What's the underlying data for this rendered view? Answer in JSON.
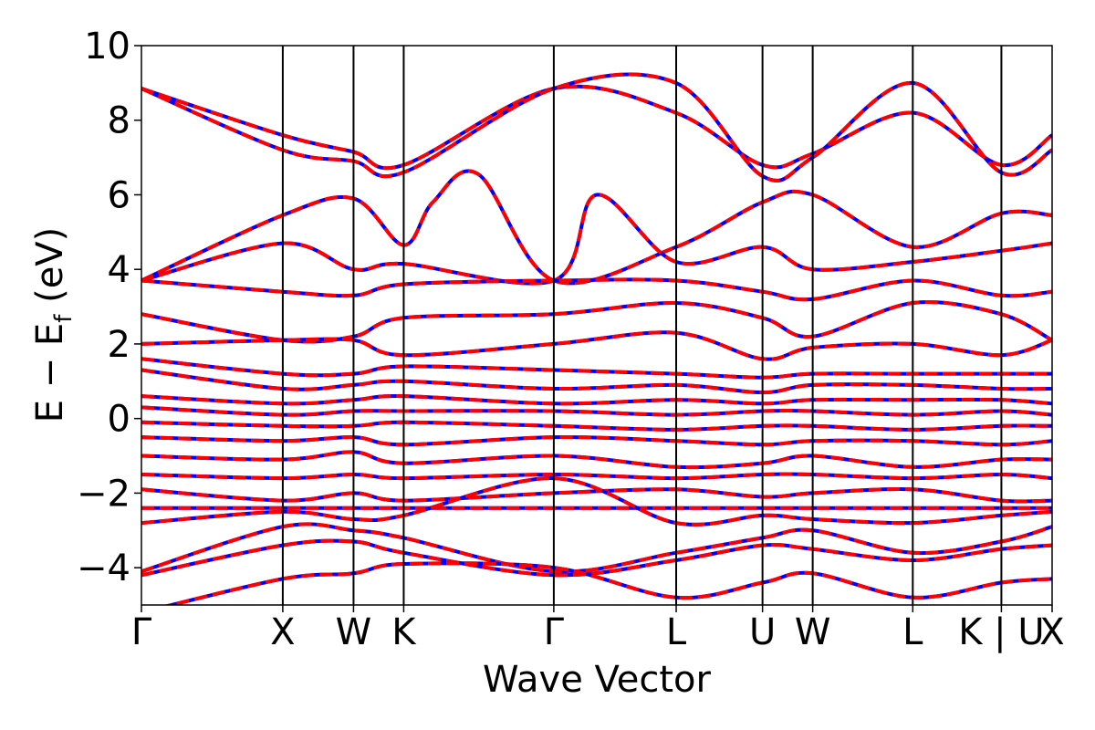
{
  "chart_data": {
    "type": "line",
    "title": "",
    "xlabel": "Wave Vector",
    "ylabel": {
      "main": "E − E",
      "sub": "f",
      "unit": " (eV)"
    },
    "ylim": [
      -5,
      10
    ],
    "yticks": [
      {
        "value": 10,
        "label": "10"
      },
      {
        "value": 8,
        "label": "8"
      },
      {
        "value": 6,
        "label": "6"
      },
      {
        "value": 4,
        "label": "4"
      },
      {
        "value": 2,
        "label": "2"
      },
      {
        "value": 0,
        "label": "0"
      },
      {
        "value": -2,
        "label": "−2"
      },
      {
        "value": -4,
        "label": "−4"
      }
    ],
    "xlim": [
      0,
      1
    ],
    "kpoints": [
      {
        "label": "Γ",
        "x": 0.0
      },
      {
        "label": "X",
        "x": 0.1552
      },
      {
        "label": "W",
        "x": 0.2329
      },
      {
        "label": "K",
        "x": 0.288
      },
      {
        "label": "Γ",
        "x": 0.4528
      },
      {
        "label": "L",
        "x": 0.5872
      },
      {
        "label": "U",
        "x": 0.682
      },
      {
        "label": "W",
        "x": 0.7371
      },
      {
        "label": "L",
        "x": 0.847
      },
      {
        "label": "K | U",
        "x": 0.9443
      },
      {
        "label": "X",
        "x": 1.0
      }
    ],
    "grid": false,
    "legend": "none",
    "series_style": [
      {
        "color": "#0000ff",
        "style": "solid"
      },
      {
        "color": "#ff0000",
        "style": "dashed"
      }
    ],
    "bands": [
      {
        "x": [
          0,
          0.155,
          0.233,
          0.288,
          0.453,
          0.587,
          0.682,
          0.737,
          0.847,
          0.944,
          1.0
        ],
        "y": [
          8.85,
          7.6,
          7.15,
          6.8,
          8.85,
          8.2,
          6.8,
          7.1,
          8.2,
          6.8,
          7.6
        ]
      },
      {
        "x": [
          0,
          0.155,
          0.233,
          0.288,
          0.453,
          0.587,
          0.682,
          0.737,
          0.847,
          0.944,
          1.0
        ],
        "y": [
          8.85,
          7.2,
          6.9,
          6.6,
          8.85,
          9.0,
          6.5,
          7.0,
          9.0,
          6.6,
          7.2
        ]
      },
      {
        "x": [
          0,
          0.155,
          0.233,
          0.288,
          0.32,
          0.37,
          0.453,
          0.587,
          0.682,
          0.737,
          0.847,
          0.944,
          1.0
        ],
        "y": [
          3.7,
          5.45,
          5.9,
          4.65,
          5.8,
          6.55,
          3.7,
          4.6,
          5.8,
          6.0,
          4.6,
          5.5,
          5.45
        ]
      },
      {
        "x": [
          0,
          0.155,
          0.233,
          0.288,
          0.453,
          0.5,
          0.587,
          0.682,
          0.737,
          0.847,
          0.944,
          1.0
        ],
        "y": [
          3.7,
          4.7,
          4.0,
          4.15,
          3.7,
          6.0,
          4.2,
          4.6,
          4.0,
          4.2,
          4.5,
          4.7
        ]
      },
      {
        "x": [
          0,
          0.155,
          0.233,
          0.288,
          0.453,
          0.587,
          0.682,
          0.737,
          0.847,
          0.944,
          1.0
        ],
        "y": [
          3.7,
          3.4,
          3.3,
          3.6,
          3.7,
          3.7,
          3.4,
          3.2,
          3.7,
          3.3,
          3.4
        ]
      },
      {
        "x": [
          0,
          0.155,
          0.233,
          0.288,
          0.453,
          0.587,
          0.682,
          0.737,
          0.847,
          0.944,
          1.0
        ],
        "y": [
          2.8,
          2.1,
          2.2,
          2.7,
          2.8,
          3.1,
          2.7,
          2.2,
          3.1,
          2.8,
          2.1
        ]
      },
      {
        "x": [
          0,
          0.155,
          0.233,
          0.288,
          0.453,
          0.587,
          0.682,
          0.737,
          0.847,
          0.944,
          1.0
        ],
        "y": [
          2.0,
          2.1,
          2.1,
          1.7,
          2.0,
          2.3,
          1.6,
          1.9,
          2.0,
          1.7,
          2.1
        ]
      },
      {
        "x": [
          0,
          0.155,
          0.233,
          0.288,
          0.453,
          0.587,
          0.682,
          0.737,
          0.847,
          0.944,
          1.0
        ],
        "y": [
          1.6,
          1.2,
          1.2,
          1.4,
          1.3,
          1.2,
          1.1,
          1.2,
          1.2,
          1.2,
          1.2
        ]
      },
      {
        "x": [
          0,
          0.155,
          0.233,
          0.288,
          0.453,
          0.587,
          0.682,
          0.737,
          0.847,
          0.944,
          1.0
        ],
        "y": [
          1.3,
          0.8,
          0.9,
          1.0,
          0.8,
          0.9,
          0.7,
          0.9,
          0.9,
          0.8,
          0.8
        ]
      },
      {
        "x": [
          0,
          0.155,
          0.233,
          0.288,
          0.453,
          0.587,
          0.682,
          0.737,
          0.847,
          0.944,
          1.0
        ],
        "y": [
          0.6,
          0.4,
          0.5,
          0.6,
          0.4,
          0.5,
          0.4,
          0.5,
          0.5,
          0.5,
          0.4
        ]
      },
      {
        "x": [
          0,
          0.155,
          0.233,
          0.288,
          0.453,
          0.587,
          0.682,
          0.737,
          0.847,
          0.944,
          1.0
        ],
        "y": [
          0.3,
          0.1,
          0.2,
          0.2,
          0.2,
          0.1,
          0.2,
          0.2,
          0.1,
          0.2,
          0.1
        ]
      },
      {
        "x": [
          0,
          0.155,
          0.233,
          0.288,
          0.453,
          0.587,
          0.682,
          0.737,
          0.847,
          0.944,
          1.0
        ],
        "y": [
          -0.1,
          -0.2,
          -0.2,
          -0.1,
          -0.2,
          -0.3,
          -0.2,
          -0.2,
          -0.3,
          -0.2,
          -0.2
        ]
      },
      {
        "x": [
          0,
          0.155,
          0.233,
          0.288,
          0.453,
          0.587,
          0.682,
          0.737,
          0.847,
          0.944,
          1.0
        ],
        "y": [
          -0.5,
          -0.6,
          -0.5,
          -0.7,
          -0.5,
          -0.6,
          -0.7,
          -0.6,
          -0.6,
          -0.7,
          -0.6
        ]
      },
      {
        "x": [
          0,
          0.155,
          0.233,
          0.288,
          0.453,
          0.587,
          0.682,
          0.737,
          0.847,
          0.944,
          1.0
        ],
        "y": [
          -1.0,
          -1.1,
          -0.9,
          -1.2,
          -1.0,
          -1.3,
          -1.2,
          -1.0,
          -1.3,
          -1.1,
          -1.1
        ]
      },
      {
        "x": [
          0,
          0.155,
          0.233,
          0.288,
          0.453,
          0.587,
          0.682,
          0.737,
          0.847,
          0.944,
          1.0
        ],
        "y": [
          -1.5,
          -1.6,
          -1.5,
          -1.6,
          -1.5,
          -1.6,
          -1.5,
          -1.5,
          -1.6,
          -1.5,
          -1.6
        ]
      },
      {
        "x": [
          0,
          0.155,
          0.233,
          0.288,
          0.453,
          0.587,
          0.682,
          0.737,
          0.847,
          0.944,
          1.0
        ],
        "y": [
          -1.9,
          -2.2,
          -2.0,
          -2.2,
          -2.0,
          -1.9,
          -2.1,
          -2.0,
          -1.9,
          -2.2,
          -2.2
        ]
      },
      {
        "x": [
          0,
          0.155,
          0.233,
          0.288,
          0.453,
          0.587,
          0.682,
          0.737,
          0.847,
          0.944,
          1.0
        ],
        "y": [
          -2.4,
          -2.4,
          -2.4,
          -2.4,
          -2.4,
          -2.4,
          -2.4,
          -2.4,
          -2.4,
          -2.4,
          -2.4
        ]
      },
      {
        "x": [
          0,
          0.155,
          0.233,
          0.288,
          0.453,
          0.587,
          0.682,
          0.737,
          0.847,
          0.944,
          1.0
        ],
        "y": [
          -2.8,
          -2.5,
          -2.7,
          -2.6,
          -1.6,
          -2.8,
          -2.6,
          -2.7,
          -2.8,
          -2.6,
          -2.5
        ]
      },
      {
        "x": [
          0,
          0.155,
          0.233,
          0.288,
          0.453,
          0.587,
          0.682,
          0.737,
          0.847,
          0.944,
          1.0
        ],
        "y": [
          -4.1,
          -2.9,
          -3.0,
          -3.2,
          -4.1,
          -3.6,
          -3.2,
          -3.0,
          -3.6,
          -3.3,
          -2.9
        ]
      },
      {
        "x": [
          0,
          0.155,
          0.233,
          0.288,
          0.453,
          0.587,
          0.682,
          0.737,
          0.847,
          0.944,
          1.0
        ],
        "y": [
          -4.2,
          -3.4,
          -3.3,
          -3.6,
          -4.2,
          -3.8,
          -3.4,
          -3.5,
          -3.8,
          -3.5,
          -3.4
        ]
      },
      {
        "x": [
          0,
          0.155,
          0.233,
          0.288,
          0.453,
          0.587,
          0.682,
          0.737,
          0.847,
          0.944,
          1.0
        ],
        "y": [
          -5.2,
          -4.3,
          -4.15,
          -3.9,
          -4.0,
          -4.8,
          -4.4,
          -4.15,
          -4.8,
          -4.4,
          -4.3
        ]
      }
    ]
  }
}
